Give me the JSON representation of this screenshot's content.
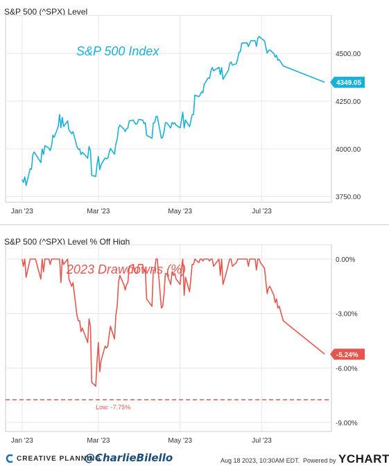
{
  "charts": {
    "top_title": "S&P 500 (^SPX) Level",
    "bottom_title": "S&P 500 (^SPX) Level % Off High"
  },
  "chart_data": [
    {
      "type": "line",
      "title": "S&P 500 (^SPX) Level",
      "annotation": "S&P 500 Index",
      "color": "#1ab0d6",
      "x_labels": [
        "Jan '23",
        "Mar '23",
        "May '23",
        "Jul '23"
      ],
      "y_ticks": [
        "4500.00",
        "4250.00",
        "4000.00",
        "3750.00"
      ],
      "ylim": [
        3720,
        4700
      ],
      "last_value_label": "4349.05",
      "values": [
        3839,
        3824,
        3853,
        3808,
        3895,
        3893,
        3969,
        3983,
        3973,
        3928,
        3999,
        3970,
        4017,
        4003,
        3990,
        4017,
        4071,
        4061,
        4117,
        4180,
        4111,
        4165,
        4117,
        4147,
        4098,
        4090,
        4079,
        4090,
        4012,
        3997,
        4000,
        3970,
        3982,
        3951,
        4012,
        3992,
        3861,
        3855,
        3919,
        3960,
        3891,
        3917,
        3952,
        3948,
        3951,
        3979,
        4002,
        3972,
        4027,
        4050,
        4109,
        4124,
        4104,
        4091,
        4105,
        4109,
        4146,
        4151,
        4137,
        4129,
        4133,
        4154,
        4151,
        4133,
        4137,
        4071,
        4055,
        4135,
        4138,
        4170,
        4169,
        4055,
        4061,
        4091,
        4136,
        4137,
        4109,
        4138,
        4130,
        4136,
        4124,
        4110,
        4148,
        4192,
        4109,
        4151,
        4116,
        4145,
        4179,
        4179,
        4282,
        4273,
        4283,
        4299,
        4294,
        4338,
        4372,
        4369,
        4409,
        4426,
        4409,
        4427,
        4389,
        4426,
        4365,
        4399,
        4411,
        4446,
        4455,
        4439,
        4446,
        4472,
        4505,
        4510,
        4554,
        4555,
        4536,
        4554,
        4567,
        4566,
        4537,
        4578,
        4589,
        4582,
        4566,
        4501,
        4514,
        4518,
        4499,
        4481,
        4490,
        4464,
        4468,
        4434,
        4349
      ],
      "dates": [
        "2023-01-03",
        "2023-01-04",
        "2023-01-05",
        "2023-01-06",
        "2023-01-09",
        "2023-01-10",
        "2023-01-11",
        "2023-01-12",
        "2023-01-13",
        "2023-01-17",
        "2023-01-18",
        "2023-01-19",
        "2023-01-20",
        "2023-01-23",
        "2023-01-24",
        "2023-01-25",
        "2023-01-26",
        "2023-01-27",
        "2023-01-30",
        "2023-01-31",
        "2023-02-01",
        "2023-02-02",
        "2023-02-03",
        "2023-02-06",
        "2023-02-07",
        "2023-02-08",
        "2023-02-09",
        "2023-02-10",
        "2023-02-13",
        "2023-02-14",
        "2023-02-15",
        "2023-02-16",
        "2023-02-17",
        "2023-02-21",
        "2023-02-22",
        "2023-02-23",
        "2023-02-24",
        "2023-02-27",
        "2023-02-28",
        "2023-03-01",
        "2023-03-02",
        "2023-03-03",
        "2023-03-06",
        "2023-03-07",
        "2023-03-08",
        "2023-03-09",
        "2023-03-10",
        "2023-03-13",
        "2023-03-14",
        "2023-03-15",
        "2023-03-16",
        "2023-03-17",
        "2023-03-20",
        "2023-03-21",
        "2023-03-22",
        "2023-03-23",
        "2023-03-24",
        "2023-03-27",
        "2023-03-28",
        "2023-03-29",
        "2023-03-30",
        "2023-03-31",
        "2023-04-03",
        "2023-04-04",
        "2023-04-05",
        "2023-04-06",
        "2023-04-10",
        "2023-04-11",
        "2023-04-12",
        "2023-04-13",
        "2023-04-14",
        "2023-04-17",
        "2023-04-18",
        "2023-04-19",
        "2023-04-20",
        "2023-04-21",
        "2023-04-24",
        "2023-04-25",
        "2023-04-26",
        "2023-04-27",
        "2023-04-28",
        "2023-05-01",
        "2023-05-02",
        "2023-05-03",
        "2023-05-04",
        "2023-05-05",
        "2023-05-08",
        "2023-05-09",
        "2023-05-10",
        "2023-05-11",
        "2023-05-12",
        "2023-05-15",
        "2023-05-16",
        "2023-05-17",
        "2023-05-18",
        "2023-05-19",
        "2023-05-22",
        "2023-05-23",
        "2023-05-24",
        "2023-05-25",
        "2023-05-26",
        "2023-05-30",
        "2023-05-31",
        "2023-06-01",
        "2023-06-02",
        "2023-06-05",
        "2023-06-06",
        "2023-06-07",
        "2023-06-08",
        "2023-06-09",
        "2023-06-12",
        "2023-06-13",
        "2023-06-14",
        "2023-06-15",
        "2023-06-16",
        "2023-06-20",
        "2023-06-21",
        "2023-06-22",
        "2023-06-23",
        "2023-06-26",
        "2023-06-27",
        "2023-06-28",
        "2023-06-29",
        "2023-06-30",
        "2023-07-03",
        "2023-07-05",
        "2023-07-06",
        "2023-07-07",
        "2023-07-10",
        "2023-07-11",
        "2023-07-12",
        "2023-07-13",
        "2023-07-14",
        "2023-07-17",
        "2023-08-17"
      ]
    },
    {
      "type": "line",
      "title": "S&P 500 (^SPX) Level % Off High",
      "annotation": "2023 Drawdowns (%)",
      "color": "#e4574f",
      "x_labels": [
        "Jan '23",
        "Mar '23",
        "May '23",
        "Jul '23"
      ],
      "y_ticks": [
        "0.00%",
        "-3.00%",
        "-6.00%",
        "-9.00%"
      ],
      "ylim": [
        -9.5,
        0.8
      ],
      "last_value_label": "-5.24%",
      "low_label": "Low: -7.75%",
      "low_value": -7.75,
      "values": [
        0.0,
        -0.4,
        0.0,
        -1.0,
        0.0,
        0.0,
        0.0,
        0.0,
        0.0,
        -1.1,
        0.0,
        -0.7,
        0.0,
        0.0,
        -0.3,
        0.0,
        0.0,
        0.0,
        0.0,
        0.0,
        -1.3,
        0.0,
        -0.3,
        0.0,
        -1.1,
        -1.3,
        -1.5,
        -1.3,
        -3.1,
        -3.4,
        -3.4,
        -4.0,
        -3.8,
        -4.6,
        -3.3,
        -3.7,
        -6.8,
        -7.0,
        -5.6,
        -4.6,
        -6.2,
        -5.6,
        -4.8,
        -4.9,
        -4.8,
        -4.2,
        -3.7,
        -4.4,
        -3.1,
        -2.6,
        -1.3,
        -0.9,
        -1.4,
        -1.7,
        -1.4,
        -1.3,
        -0.4,
        -0.3,
        -0.7,
        -0.8,
        -0.7,
        -0.3,
        -0.3,
        -0.7,
        -0.6,
        -2.2,
        -2.6,
        -0.6,
        -0.6,
        0.0,
        0.0,
        -2.7,
        -2.6,
        -1.9,
        -0.8,
        -0.8,
        -1.4,
        -0.7,
        -0.9,
        -0.8,
        -1.1,
        -1.4,
        -0.5,
        0.0,
        -2.0,
        -1.0,
        -1.8,
        -1.1,
        -0.3,
        -0.3,
        0.0,
        -0.2,
        0.0,
        0.0,
        -0.1,
        0.0,
        0.0,
        -0.1,
        0.0,
        0.0,
        -0.4,
        0.0,
        -0.9,
        0.0,
        -1.4,
        -0.6,
        -0.3,
        0.0,
        0.0,
        -0.4,
        -0.2,
        0.0,
        0.0,
        0.0,
        0.0,
        0.0,
        -0.4,
        0.0,
        0.0,
        0.0,
        -0.6,
        0.0,
        0.0,
        -0.2,
        -0.5,
        -1.9,
        -1.6,
        -1.5,
        -2.0,
        -2.4,
        -2.2,
        -2.7,
        -2.6,
        -3.4,
        -5.24
      ],
      "dates": [
        "2023-01-03",
        "2023-01-04",
        "2023-01-05",
        "2023-01-06",
        "2023-01-09",
        "2023-01-10",
        "2023-01-11",
        "2023-01-12",
        "2023-01-13",
        "2023-01-17",
        "2023-01-18",
        "2023-01-19",
        "2023-01-20",
        "2023-01-23",
        "2023-01-24",
        "2023-01-25",
        "2023-01-26",
        "2023-01-27",
        "2023-01-30",
        "2023-01-31",
        "2023-02-01",
        "2023-02-02",
        "2023-02-03",
        "2023-02-06",
        "2023-02-07",
        "2023-02-08",
        "2023-02-09",
        "2023-02-10",
        "2023-02-13",
        "2023-02-14",
        "2023-02-15",
        "2023-02-16",
        "2023-02-17",
        "2023-02-21",
        "2023-02-22",
        "2023-02-23",
        "2023-02-24",
        "2023-02-27",
        "2023-02-28",
        "2023-03-01",
        "2023-03-02",
        "2023-03-03",
        "2023-03-06",
        "2023-03-07",
        "2023-03-08",
        "2023-03-09",
        "2023-03-10",
        "2023-03-13",
        "2023-03-14",
        "2023-03-15",
        "2023-03-16",
        "2023-03-17",
        "2023-03-20",
        "2023-03-21",
        "2023-03-22",
        "2023-03-23",
        "2023-03-24",
        "2023-03-27",
        "2023-03-28",
        "2023-03-29",
        "2023-03-30",
        "2023-03-31",
        "2023-04-03",
        "2023-04-04",
        "2023-04-05",
        "2023-04-06",
        "2023-04-10",
        "2023-04-11",
        "2023-04-12",
        "2023-04-13",
        "2023-04-14",
        "2023-04-17",
        "2023-04-18",
        "2023-04-19",
        "2023-04-20",
        "2023-04-21",
        "2023-04-24",
        "2023-04-25",
        "2023-04-26",
        "2023-04-27",
        "2023-04-28",
        "2023-05-01",
        "2023-05-02",
        "2023-05-03",
        "2023-05-04",
        "2023-05-05",
        "2023-05-08",
        "2023-05-09",
        "2023-05-10",
        "2023-05-11",
        "2023-05-12",
        "2023-05-15",
        "2023-05-16",
        "2023-05-17",
        "2023-05-18",
        "2023-05-19",
        "2023-05-22",
        "2023-05-23",
        "2023-05-24",
        "2023-05-25",
        "2023-05-26",
        "2023-05-30",
        "2023-05-31",
        "2023-06-01",
        "2023-06-02",
        "2023-06-05",
        "2023-06-06",
        "2023-06-07",
        "2023-06-08",
        "2023-06-09",
        "2023-06-12",
        "2023-06-13",
        "2023-06-14",
        "2023-06-15",
        "2023-06-16",
        "2023-06-20",
        "2023-06-21",
        "2023-06-22",
        "2023-06-23",
        "2023-06-26",
        "2023-06-27",
        "2023-06-28",
        "2023-06-29",
        "2023-06-30",
        "2023-07-03",
        "2023-07-05",
        "2023-07-06",
        "2023-07-07",
        "2023-07-10",
        "2023-07-11",
        "2023-07-12",
        "2023-07-13",
        "2023-07-14",
        "2023-07-17",
        "2023-08-17"
      ]
    }
  ],
  "footer": {
    "brand": "CREATIVE PLANNING",
    "handle": "@CharlieBilello",
    "timestamp": "Aug 18 2023, 10:30AM EDT.",
    "powered_by": "Powered by",
    "ycharts": "YCHARTS"
  }
}
